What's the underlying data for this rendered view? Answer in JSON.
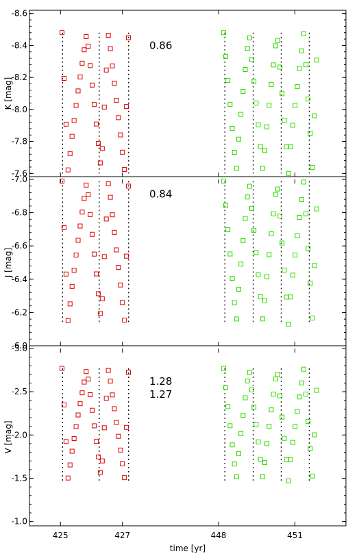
{
  "chart_data": {
    "type": "scatter",
    "xlabel": "time [yr]",
    "x_ticks": [
      {
        "label": "425",
        "x": 425
      },
      {
        "label": "427",
        "x": 427
      },
      {
        "label": "448",
        "x": 448
      },
      {
        "label": "451",
        "x": 451
      }
    ],
    "colors": {
      "red": "#e00000",
      "green": "#33dd00",
      "grid": "#000000"
    },
    "panels": [
      {
        "id": "K",
        "ylabel": "K [mag]",
        "ylim": [
          -7.58,
          -8.62
        ],
        "yticks": [
          -8.6,
          -8.4,
          -8.2,
          -8.0,
          -7.8,
          -7.6
        ],
        "ytick_labels": [
          "-8.6",
          "-8.4",
          "-8.2",
          "-8.0",
          "-7.8",
          "-7.6"
        ],
        "bottom": -7.6,
        "top": -8.48,
        "annotations": [
          "0.86"
        ]
      },
      {
        "id": "J",
        "ylabel": "J [mag]",
        "ylim": [
          -6.0,
          -7.0
        ],
        "yticks": [
          -7.0,
          -6.8,
          -6.6,
          -6.4,
          -6.2,
          -6.0
        ],
        "ytick_labels": [
          "-7.0",
          "-6.8",
          "-6.6",
          "-6.4",
          "-6.2",
          "-6.0"
        ],
        "bottom": -6.13,
        "top": -6.99,
        "annotations": [
          "0.84"
        ]
      },
      {
        "id": "V",
        "ylabel": "V [mag]",
        "ylim": [
          -0.95,
          -3.0
        ],
        "yticks": [
          -3.0,
          -2.5,
          -2.0,
          -1.5,
          -1.0
        ],
        "ytick_labels": [
          "-3.0",
          "-2.5",
          "-2.0",
          "-1.5",
          "-1.0"
        ],
        "bottom": -1.47,
        "top": -2.77,
        "annotations": [
          "1.28",
          "1.27"
        ]
      }
    ]
  }
}
